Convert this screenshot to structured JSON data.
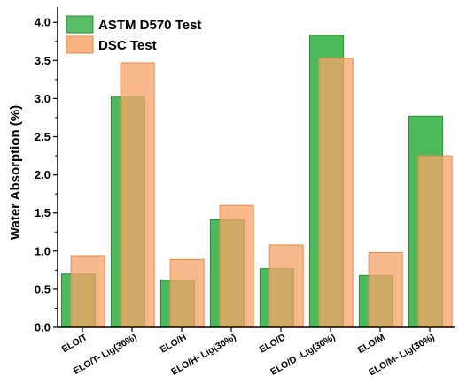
{
  "chart_data": {
    "type": "bar",
    "categories": [
      "ELO/T",
      "ELO/T- Lig(30%)",
      "ELO/H",
      "ELO/H- Lig(30%)",
      "ELO/D",
      "ELO/D -Lig(30%)",
      "ELO/M",
      "ELO/M- Lig(30%)"
    ],
    "series": [
      {
        "name": "ASTM D570 Test",
        "values": [
          0.7,
          3.02,
          0.62,
          1.41,
          0.77,
          3.83,
          0.68,
          2.77
        ],
        "color": "#3cb44b"
      },
      {
        "name": "DSC Test",
        "values": [
          0.94,
          3.47,
          0.89,
          1.6,
          1.08,
          3.53,
          0.98,
          2.25
        ],
        "color": "#f5a46a"
      }
    ],
    "ylabel": "Water Absorption (%)",
    "xlabel": "",
    "ylim": [
      0,
      4.2
    ],
    "yticks": [
      "0.0",
      "0.5",
      "1.0",
      "1.5",
      "2.0",
      "2.5",
      "3.0",
      "3.5",
      "4.0"
    ],
    "legend_position": "top-left",
    "grid": false
  }
}
